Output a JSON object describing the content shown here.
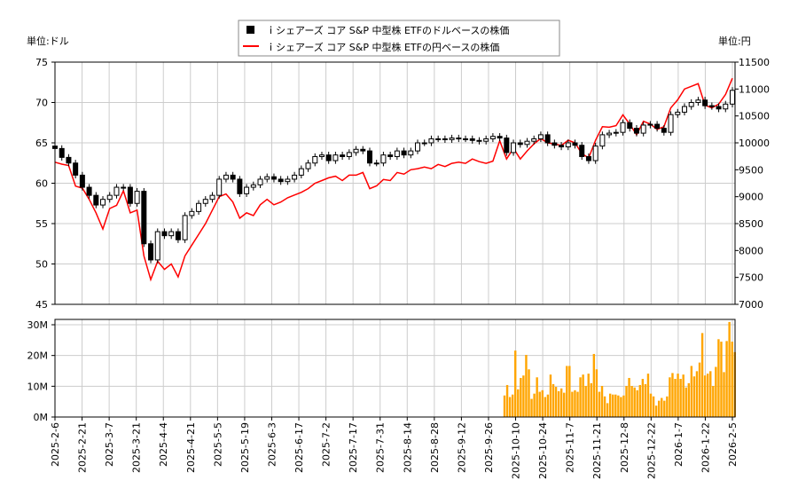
{
  "chart_data": [
    {
      "type": "candlestick+line",
      "legend": {
        "placement": "top-center",
        "entries": [
          {
            "label": "ｉシェアーズ コア S&P 中型株 ETFのドルベースの株価",
            "color": "#000000",
            "marker": "square"
          },
          {
            "label": "ｉシェアーズ コア S&P 中型株 ETFの円ベースの株価",
            "color": "#ff0000",
            "marker": "line"
          }
        ]
      },
      "left_axis": {
        "unit_label": "単位:ドル",
        "ylim": [
          45,
          75
        ],
        "ticks": [
          45,
          50,
          55,
          60,
          65,
          70,
          75
        ]
      },
      "right_axis": {
        "unit_label": "単位:円",
        "ylim": [
          7000,
          11500
        ],
        "ticks": [
          7000,
          7500,
          8000,
          8500,
          9000,
          9500,
          10000,
          10500,
          11000,
          11500
        ]
      },
      "grid": true,
      "x_tick_labels": [
        "2025-2-6",
        "2025-2-21",
        "2025-3-7",
        "2025-3-21",
        "2025-4-4",
        "2025-4-21",
        "2025-5-5",
        "2025-5-19",
        "2025-6-3",
        "2025-6-17",
        "2025-7-2",
        "2025-7-17",
        "2025-7-31",
        "2025-8-14",
        "2025-8-28",
        "2025-9-12",
        "2025-9-26",
        "2025-10-10",
        "2025-10-24",
        "2025-11-7",
        "2025-11-21",
        "2025-12-8",
        "2025-12-22",
        "2026-1-7",
        "2026-1-22",
        "2026-2-5"
      ],
      "trading_days_per_tick": 10,
      "usd_close": [
        64.3,
        63.2,
        62.5,
        61,
        59.5,
        58.5,
        57.3,
        58,
        58.5,
        59.5,
        59.5,
        57.5,
        59,
        52.5,
        50.5,
        54,
        53.5,
        54,
        53,
        56,
        56.5,
        57.5,
        58,
        58.5,
        60.5,
        61,
        60.5,
        58.7,
        59.5,
        59.8,
        60.5,
        60.8,
        60.5,
        60.2,
        60.5,
        61,
        61.8,
        62.5,
        63.3,
        63.5,
        62.8,
        63.5,
        63.3,
        63.8,
        64.2,
        64,
        62.5,
        62.5,
        63.5,
        63.3,
        64,
        63.5,
        64,
        65,
        65,
        65.5,
        65.5,
        65.4,
        65.6,
        65.5,
        65.5,
        65.3,
        65.2,
        65.5,
        65.8,
        65.6,
        63.8,
        65,
        64.8,
        65.2,
        65.5,
        66,
        65,
        64.7,
        64.5,
        65,
        64.7,
        63.3,
        62.8,
        64.6,
        66,
        66.2,
        66.3,
        67.5,
        66.8,
        66.2,
        67.2,
        67.3,
        66.8,
        66.3,
        68.5,
        68.8,
        69.5,
        70,
        70.3,
        69.6,
        69.5,
        69.2,
        69.8,
        71.5
      ],
      "jpy_close": [
        9640,
        9605,
        9580,
        9195,
        9160,
        8950,
        8700,
        8400,
        8780,
        8840,
        9110,
        8700,
        8750,
        7900,
        7460,
        7800,
        7650,
        7750,
        7510,
        7900,
        8100,
        8300,
        8500,
        8750,
        9000,
        9050,
        8900,
        8600,
        8700,
        8650,
        8850,
        8950,
        8850,
        8900,
        8980,
        9030,
        9080,
        9150,
        9250,
        9300,
        9350,
        9380,
        9300,
        9400,
        9400,
        9450,
        9150,
        9200,
        9320,
        9300,
        9450,
        9420,
        9500,
        9520,
        9550,
        9520,
        9600,
        9560,
        9620,
        9640,
        9620,
        9700,
        9650,
        9620,
        9660,
        10040,
        9700,
        9900,
        9700,
        9850,
        9980,
        10080,
        10000,
        9980,
        9950,
        10050,
        10000,
        9800,
        9720,
        10050,
        10300,
        10290,
        10320,
        10520,
        10350,
        10150,
        10400,
        10350,
        10250,
        10300,
        10650,
        10800,
        11000,
        11050,
        11100,
        10700,
        10650,
        10720,
        10900,
        11200
      ]
    },
    {
      "type": "bar",
      "ylim": [
        0,
        30
      ],
      "y_tick_labels": [
        "0M",
        "10M",
        "20M",
        "30M"
      ],
      "bar_color": "#ffa500",
      "grid": true,
      "volume_millions": [
        7.0,
        10.4,
        6.5,
        7.3,
        21.6,
        9.0,
        12.7,
        13.5,
        20.2,
        15.5,
        5.9,
        7.6,
        12.9,
        8.2,
        8.7,
        6.5,
        7.3,
        13.8,
        10.7,
        9.8,
        8.4,
        9.3,
        7.9,
        16.6,
        16.6,
        8.2,
        8.7,
        8.2,
        12.9,
        13.8,
        10.1,
        14.1,
        11.0,
        20.5,
        15.5,
        8.2,
        10.1,
        6.7,
        4.5,
        7.6,
        7.3,
        7.3,
        7.0,
        6.5,
        7.0,
        10.1,
        12.7,
        10.1,
        9.6,
        8.7,
        10.4,
        12.4,
        10.7,
        14.1,
        7.6,
        6.7,
        3.7,
        5.3,
        6.2,
        5.3,
        6.7,
        12.9,
        14.3,
        12.4,
        14.1,
        12.4,
        13.8,
        9.6,
        11.0,
        16.6,
        13.2,
        14.9,
        17.7,
        27.3,
        13.5,
        14.1,
        14.9,
        10.1,
        16.3,
        25.3,
        24.5,
        14.6,
        24.7,
        30.9,
        24.5,
        21.1
      ]
    }
  ]
}
